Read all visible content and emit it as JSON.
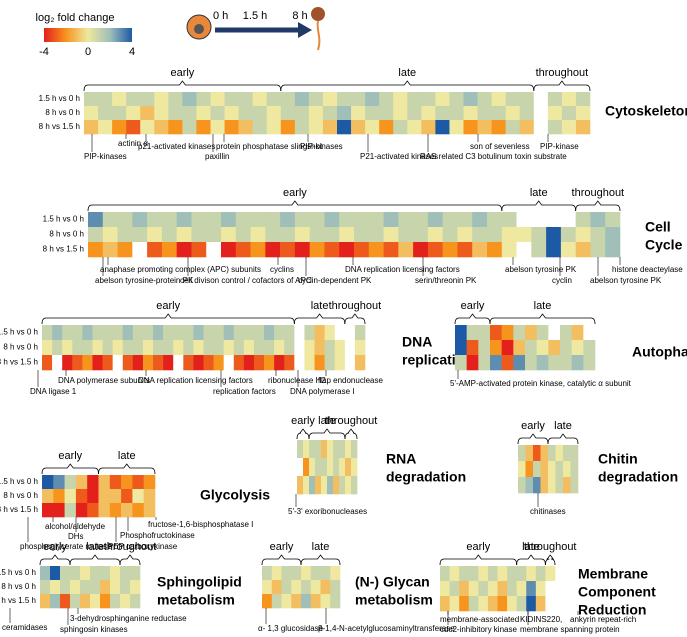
{
  "legend": {
    "title": "log₂ fold change",
    "ticks": [
      -4,
      0,
      4
    ]
  },
  "timeline": [
    "0 h",
    "1.5 h",
    "8 h"
  ],
  "row_labels": [
    "1.5 h vs 0 h",
    "8 h vs 0 h",
    "8 h vs 1.5 h"
  ],
  "panels": [
    {
      "title": [
        "Cytoskeleton"
      ],
      "groups": [
        "early",
        "late",
        "throughout"
      ],
      "rows": [
        [
          1,
          1,
          0,
          1,
          1,
          0,
          1,
          2,
          1,
          0,
          1,
          1,
          0,
          1,
          1,
          2,
          1,
          0,
          1,
          1,
          2,
          1,
          0,
          1,
          1,
          0,
          1,
          2,
          1,
          0,
          1,
          1,
          null,
          1,
          0,
          1
        ],
        [
          0,
          1,
          1,
          0,
          -1,
          0,
          1,
          1,
          0,
          1,
          0,
          1,
          1,
          0,
          1,
          1,
          0,
          1,
          2,
          0,
          1,
          1,
          0,
          1,
          0,
          1,
          1,
          0,
          1,
          1,
          0,
          1,
          null,
          0,
          1,
          0
        ],
        [
          -1,
          0,
          -2,
          -3,
          0,
          -1,
          -2,
          1,
          -2,
          0,
          -2,
          -1,
          1,
          0,
          -2,
          1,
          0,
          -1,
          4,
          -1,
          0,
          -2,
          1,
          0,
          -1,
          4,
          0,
          -2,
          -1,
          -2,
          1,
          -1,
          null,
          1,
          0,
          -1
        ]
      ],
      "annotations": [
        "PIP-kinases",
        "actinin α",
        "p21-activated kinases",
        "paxillin",
        "protein phosphatase slingshot",
        "PIP-kinases",
        "P21-activated kinases",
        "son of sevenless",
        "RAS related C3 botulinum toxin substrate",
        "PIP-kinase"
      ]
    },
    {
      "title": [
        "Cell",
        "Cycle"
      ],
      "groups": [
        "early",
        "late",
        "throughout"
      ],
      "rows": [
        [
          3,
          1,
          1,
          2,
          1,
          1,
          2,
          1,
          1,
          2,
          1,
          1,
          1,
          2,
          1,
          1,
          2,
          1,
          1,
          1,
          2,
          1,
          1,
          2,
          1,
          1,
          2,
          1,
          1,
          null,
          null,
          null,
          null,
          1,
          2,
          1
        ],
        [
          1,
          0,
          1,
          1,
          0,
          1,
          0,
          1,
          1,
          0,
          1,
          0,
          1,
          1,
          0,
          1,
          1,
          0,
          1,
          1,
          0,
          1,
          1,
          0,
          1,
          0,
          1,
          1,
          0,
          0,
          1,
          4,
          1,
          0,
          1,
          2
        ],
        [
          -2,
          -1,
          -2,
          null,
          -3,
          -2,
          -4,
          -3,
          null,
          -4,
          -3,
          -2,
          -4,
          -3,
          -4,
          -2,
          -3,
          -4,
          -3,
          -2,
          -3,
          -1,
          -4,
          -3,
          -2,
          -3,
          -1,
          -2,
          0,
          null,
          1,
          4,
          0,
          -1,
          1,
          2
        ]
      ],
      "annotations": [
        "anaphase promoting complex (APC) subunits",
        "abelson tyrosine-protein PK",
        "cyclins",
        "cell divison control / cofactors of APC",
        "DNA replication licensing factors",
        "cyclin-dependent PK",
        "serin/threonin PK",
        "abelson tyrosine PK",
        "cyclin",
        "histone deacteylase",
        "abelson tyrosine PK"
      ]
    },
    {
      "title": [
        "DNA",
        "replication"
      ],
      "groups": [
        "early",
        "late",
        "throughout"
      ],
      "rows": [
        [
          1,
          2,
          1,
          1,
          2,
          1,
          1,
          1,
          2,
          1,
          1,
          2,
          1,
          1,
          1,
          2,
          1,
          1,
          2,
          1,
          1,
          1,
          2,
          1,
          1,
          null,
          1,
          -1,
          0,
          null,
          null,
          1
        ],
        [
          0,
          1,
          0,
          1,
          1,
          0,
          1,
          0,
          1,
          1,
          0,
          1,
          1,
          0,
          1,
          0,
          1,
          1,
          0,
          1,
          0,
          1,
          1,
          0,
          1,
          null,
          0,
          -1,
          1,
          0,
          null,
          0
        ],
        [
          -3,
          null,
          -4,
          -3,
          -2,
          -4,
          -3,
          null,
          -3,
          -4,
          -2,
          -3,
          -4,
          null,
          -3,
          -4,
          -3,
          -2,
          null,
          -3,
          -4,
          -3,
          -2,
          -4,
          -3,
          null,
          0,
          -2,
          1,
          0,
          null,
          -1
        ]
      ],
      "annotations": [
        "DNA ligase 1",
        "DNA polymerase subunits",
        "DNA replication licensing factors",
        "replication factors",
        "ribonuclease H2",
        "DNA polymerase I",
        "flap endonuclease"
      ]
    },
    {
      "title": [
        "Autophagy"
      ],
      "groups": [
        "early",
        "late"
      ],
      "rows": [
        [
          4,
          1,
          1,
          -3,
          -2,
          1,
          -1,
          1,
          null,
          1,
          -1,
          null
        ],
        [
          4,
          -3,
          1,
          -2,
          -4,
          -1,
          1,
          0,
          -1,
          1,
          0,
          1
        ],
        [
          1,
          -4,
          1,
          3,
          -3,
          3,
          1,
          2,
          1,
          1,
          2,
          1
        ]
      ],
      "annotations": [
        "5'-AMP-activated protein kinase, catalytic α subunit"
      ]
    },
    {
      "title": [
        "Glycolysis"
      ],
      "groups": [
        "early",
        "late"
      ],
      "rows": [
        [
          4,
          3,
          1,
          -1,
          -4,
          -1,
          -3,
          -2,
          -3,
          -2
        ],
        [
          -1,
          -2,
          0,
          -3,
          -4,
          -1,
          -1,
          -3,
          0,
          -1
        ],
        [
          -4,
          -4,
          1,
          -4,
          -3,
          -1,
          -2,
          -1,
          -2,
          -1
        ]
      ],
      "annotations": [
        "alcohol/aldehyde",
        "DHs",
        "phosphoglycerate mutase",
        "PEP carboxykinase",
        "Phosphofructokinase",
        "fructose-1,6-bisphosphatase I"
      ]
    },
    {
      "title": [
        "RNA",
        "degradation"
      ],
      "groups": [
        "early",
        "late",
        "throughout"
      ],
      "rows": [
        [
          1,
          0,
          1,
          1,
          -1,
          0,
          1,
          1,
          0,
          1
        ],
        [
          null,
          -2,
          0,
          1,
          1,
          0,
          1,
          0,
          -1,
          0
        ],
        [
          -1,
          0,
          2,
          -1,
          0,
          2,
          -1,
          1,
          0,
          1
        ]
      ],
      "annotations": [
        "5'-3' exoribonucleases"
      ]
    },
    {
      "title": [
        "Chitin",
        "degradation"
      ],
      "groups": [
        "early",
        "late"
      ],
      "rows": [
        [
          1,
          -1,
          -3,
          -1,
          1,
          0,
          1,
          1
        ],
        [
          0,
          -2,
          1,
          -1,
          0,
          1,
          0,
          1
        ],
        [
          1,
          2,
          3,
          -1,
          0,
          1,
          -1,
          1
        ]
      ],
      "annotations": [
        "chitinases"
      ]
    },
    {
      "title": [
        "Sphingolipid",
        "metabolism"
      ],
      "groups": [
        "early",
        "late",
        "throughout"
      ],
      "rows": [
        [
          2,
          4,
          1,
          1,
          0,
          1,
          1,
          0,
          1,
          1
        ],
        [
          1,
          0,
          1,
          0,
          1,
          1,
          -1,
          0,
          1,
          0
        ],
        [
          -1,
          2,
          -3,
          1,
          -1,
          0,
          -2,
          1,
          0,
          1
        ]
      ],
      "annotations": [
        "ceramidases",
        "sphingosin kinases",
        "3-dehydrosphinganine reductase"
      ]
    },
    {
      "title": [
        "(N-) Glycan",
        "metabolism"
      ],
      "groups": [
        "early",
        "late"
      ],
      "rows": [
        [
          1,
          0,
          1,
          1,
          0,
          1,
          1,
          0
        ],
        [
          0,
          -1,
          1,
          0,
          1,
          0,
          -1,
          1
        ],
        [
          -2,
          1,
          0,
          -1,
          2,
          -1,
          0,
          1
        ]
      ],
      "annotations": [
        "α- 1,3 glucosidase",
        "β-1,4-N-acetylglucosaminyltransferase"
      ]
    },
    {
      "title": [
        "Membrane",
        "Component",
        "Reduction"
      ],
      "groups": [
        "early",
        "late",
        "throughout"
      ],
      "rows": [
        [
          1,
          0,
          1,
          1,
          0,
          1,
          0,
          1,
          1,
          0,
          1,
          0
        ],
        [
          0,
          1,
          -1,
          0,
          1,
          0,
          -1,
          1,
          0,
          3,
          0,
          null
        ],
        [
          -1,
          0,
          -2,
          1,
          0,
          -1,
          -2,
          0,
          1,
          4,
          -1,
          null
        ]
      ],
      "annotations": [
        "membrane-associated",
        "cdc2-inhibitory kinase",
        "KIDINS220,",
        "membrane spanning protein",
        "ankyrin repeat-rich"
      ]
    }
  ]
}
